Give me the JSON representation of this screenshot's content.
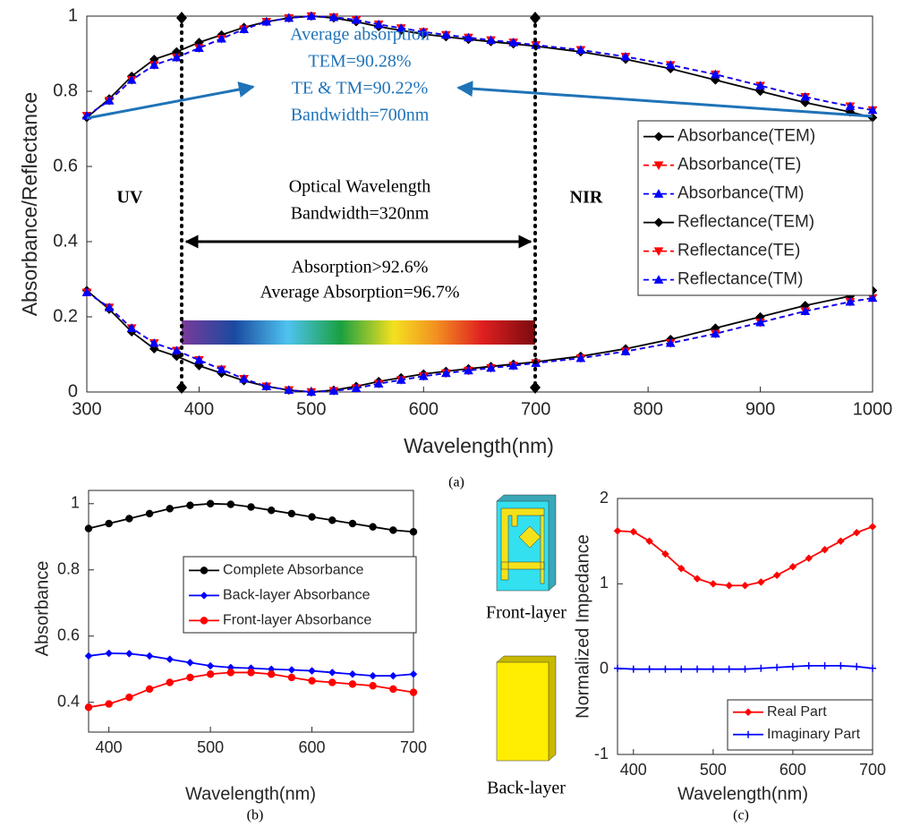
{
  "chart_data": [
    {
      "type": "line",
      "caption": "(a)",
      "xlabel": "Wavelength(nm)",
      "ylabel": "Absorbance/Reflectance",
      "x": [
        300,
        320,
        340,
        360,
        380,
        400,
        420,
        440,
        460,
        480,
        500,
        520,
        540,
        560,
        580,
        600,
        620,
        640,
        660,
        680,
        700,
        740,
        780,
        820,
        860,
        900,
        940,
        980,
        1000
      ],
      "xlim": [
        300,
        1000
      ],
      "xticks": [
        300,
        400,
        500,
        600,
        700,
        800,
        900,
        1000
      ],
      "ylim": [
        0,
        1
      ],
      "yticks": [
        0,
        0.2,
        0.4,
        0.6,
        0.8,
        1
      ],
      "series": [
        {
          "name": "Absorbance(TEM)",
          "color": "#000000",
          "style": "solid",
          "marker": "diamond",
          "values": [
            0.73,
            0.78,
            0.84,
            0.885,
            0.905,
            0.93,
            0.95,
            0.97,
            0.985,
            0.995,
            1.0,
            0.995,
            0.985,
            0.972,
            0.962,
            0.952,
            0.945,
            0.938,
            0.932,
            0.926,
            0.92,
            0.905,
            0.885,
            0.86,
            0.83,
            0.8,
            0.77,
            0.745,
            0.73
          ]
        },
        {
          "name": "Absorbance(TE)",
          "color": "#ff0000",
          "style": "dashed",
          "marker": "triangle-down",
          "values": [
            0.735,
            0.775,
            0.83,
            0.87,
            0.89,
            0.915,
            0.94,
            0.965,
            0.985,
            0.995,
            1.0,
            0.997,
            0.99,
            0.978,
            0.968,
            0.958,
            0.95,
            0.943,
            0.936,
            0.93,
            0.923,
            0.91,
            0.892,
            0.87,
            0.845,
            0.815,
            0.785,
            0.76,
            0.75
          ]
        },
        {
          "name": "Absorbance(TM)",
          "color": "#0000ff",
          "style": "dashed",
          "marker": "triangle-up",
          "values": [
            0.735,
            0.775,
            0.83,
            0.87,
            0.89,
            0.915,
            0.94,
            0.965,
            0.985,
            0.995,
            1.0,
            0.997,
            0.99,
            0.978,
            0.968,
            0.958,
            0.95,
            0.943,
            0.936,
            0.93,
            0.923,
            0.91,
            0.892,
            0.87,
            0.845,
            0.815,
            0.785,
            0.76,
            0.75
          ]
        },
        {
          "name": "Reflectance(TEM)",
          "color": "#000000",
          "style": "solid",
          "marker": "diamond",
          "values": [
            0.27,
            0.22,
            0.16,
            0.115,
            0.095,
            0.07,
            0.05,
            0.03,
            0.015,
            0.005,
            0.0,
            0.005,
            0.015,
            0.028,
            0.038,
            0.048,
            0.055,
            0.062,
            0.068,
            0.074,
            0.08,
            0.095,
            0.115,
            0.14,
            0.17,
            0.2,
            0.23,
            0.255,
            0.27
          ]
        },
        {
          "name": "Reflectance(TE)",
          "color": "#ff0000",
          "style": "dashed",
          "marker": "triangle-down",
          "values": [
            0.265,
            0.225,
            0.17,
            0.13,
            0.11,
            0.085,
            0.06,
            0.035,
            0.015,
            0.005,
            0.0,
            0.003,
            0.01,
            0.022,
            0.032,
            0.042,
            0.05,
            0.057,
            0.064,
            0.07,
            0.077,
            0.09,
            0.108,
            0.13,
            0.155,
            0.185,
            0.215,
            0.24,
            0.25
          ]
        },
        {
          "name": "Reflectance(TM)",
          "color": "#0000ff",
          "style": "dashed",
          "marker": "triangle-up",
          "values": [
            0.265,
            0.225,
            0.17,
            0.13,
            0.11,
            0.085,
            0.06,
            0.035,
            0.015,
            0.005,
            0.0,
            0.003,
            0.01,
            0.022,
            0.032,
            0.042,
            0.05,
            0.057,
            0.064,
            0.07,
            0.077,
            0.09,
            0.108,
            0.13,
            0.155,
            0.185,
            0.215,
            0.24,
            0.25
          ]
        }
      ],
      "annotations": [
        "UV",
        "NIR",
        "Average absorption",
        "TEM=90.28%",
        "TE & TM=90.22%",
        "Bandwidth=700nm",
        "Optical Wavelength",
        "Bandwidth=320nm",
        "Absorption>92.6%",
        "Average Absorption=96.7%"
      ]
    },
    {
      "type": "line",
      "caption": "(b)",
      "xlabel": "Wavelength(nm)",
      "ylabel": "Absorbance",
      "x": [
        380,
        400,
        420,
        440,
        460,
        480,
        500,
        520,
        540,
        560,
        580,
        600,
        620,
        640,
        660,
        680,
        700
      ],
      "xlim": [
        380,
        700
      ],
      "xticks": [
        400,
        500,
        600,
        700
      ],
      "ylim": [
        0.31,
        1.04
      ],
      "yticks": [
        0.4,
        0.6,
        0.8,
        1
      ],
      "series": [
        {
          "name": "Complete Absorbance",
          "color": "#000000",
          "style": "solid",
          "marker": "circle",
          "values": [
            0.925,
            0.94,
            0.955,
            0.97,
            0.985,
            0.995,
            1.0,
            0.998,
            0.99,
            0.98,
            0.97,
            0.96,
            0.95,
            0.94,
            0.93,
            0.92,
            0.915
          ]
        },
        {
          "name": "Back-layer Absorbance",
          "color": "#0000ff",
          "style": "solid",
          "marker": "diamond",
          "values": [
            0.54,
            0.548,
            0.547,
            0.54,
            0.53,
            0.52,
            0.51,
            0.505,
            0.503,
            0.5,
            0.498,
            0.495,
            0.49,
            0.485,
            0.48,
            0.48,
            0.485
          ]
        },
        {
          "name": "Front-layer Absorbance",
          "color": "#ff0000",
          "style": "solid",
          "marker": "circle",
          "values": [
            0.385,
            0.395,
            0.415,
            0.44,
            0.46,
            0.475,
            0.485,
            0.49,
            0.49,
            0.485,
            0.475,
            0.465,
            0.46,
            0.455,
            0.45,
            0.44,
            0.43
          ]
        }
      ]
    },
    {
      "type": "line",
      "caption": "(c)",
      "xlabel": "Wavelength(nm)",
      "ylabel": "Normalized Impedance",
      "x": [
        380,
        400,
        420,
        440,
        460,
        480,
        500,
        520,
        540,
        560,
        580,
        600,
        620,
        640,
        660,
        680,
        700
      ],
      "xlim": [
        380,
        700
      ],
      "xticks": [
        400,
        500,
        600,
        700
      ],
      "ylim": [
        -1,
        2
      ],
      "yticks": [
        -1,
        0,
        1,
        2
      ],
      "series": [
        {
          "name": "Real Part",
          "color": "#ff0000",
          "style": "solid",
          "marker": "diamond",
          "values": [
            1.62,
            1.61,
            1.5,
            1.35,
            1.18,
            1.06,
            1.0,
            0.98,
            0.98,
            1.02,
            1.1,
            1.2,
            1.3,
            1.4,
            1.5,
            1.6,
            1.67
          ]
        },
        {
          "name": "Imaginary Part",
          "color": "#0000ff",
          "style": "solid",
          "marker": "plus",
          "values": [
            0.01,
            0.0,
            0.0,
            0.0,
            0.0,
            0.0,
            0.0,
            0.0,
            0.0,
            0.01,
            0.02,
            0.03,
            0.04,
            0.04,
            0.04,
            0.03,
            0.01
          ]
        }
      ]
    }
  ],
  "diagram": {
    "front_label": "Front-layer",
    "back_label": "Back-layer"
  }
}
